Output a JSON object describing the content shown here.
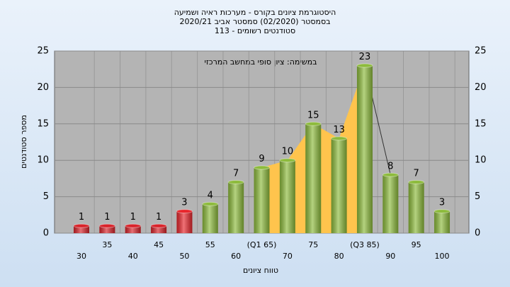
{
  "chart_data": {
    "type": "bar",
    "title": [
      "היסטוגרמת ציונים בקורס - מערכות ראיה ושמיעה",
      "בסמסטר  (02/2020)  סמסטר אביב 2020/21",
      "סטודנטים רשומים - 113"
    ],
    "annotation": "במשימה: ציון סופי במחשב המרכזי",
    "x_label": "טווח ציונים",
    "y_label": "מספר סטודנטים",
    "categories": [
      "30",
      "35",
      "40",
      "45",
      "50",
      "55",
      "60",
      "(Q1 65)",
      "70",
      "75",
      "80",
      "(Q3 85)",
      "90",
      "95",
      "100"
    ],
    "values": [
      1,
      1,
      1,
      1,
      3,
      4,
      7,
      9,
      10,
      15,
      13,
      23,
      8,
      7,
      3
    ],
    "colors": [
      "#d9232a",
      "#d9232a",
      "#d9232a",
      "#d9232a",
      "#e8262c",
      "#8dbb3c",
      "#8dbb3c",
      "#8dbb3c",
      "#8dbb3c",
      "#8dbb3c",
      "#8dbb3c",
      "#8dbb3c",
      "#8dbb3c",
      "#8dbb3c",
      "#8dbb3c"
    ],
    "ylim": [
      0,
      25
    ],
    "yticks": [
      0,
      5,
      10,
      15,
      20,
      25
    ],
    "y2lim": [
      0,
      25
    ],
    "y2ticks": [
      0,
      5,
      10,
      15,
      20,
      25
    ],
    "grid": true
  }
}
